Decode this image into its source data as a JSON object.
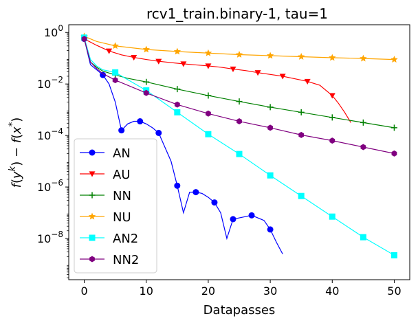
{
  "chart_data": {
    "type": "line",
    "title": "rcv1_train.binary-1, tau=1",
    "xlabel": "Datapasses",
    "ylabel": "f(y^k) − f(x*)",
    "ylabel_parts": {
      "f1": "f",
      "y": "y",
      "k": "k",
      "minus": "−",
      "f2": "f",
      "x": "x",
      "star": "*"
    },
    "xlim": [
      -2.5,
      52.5
    ],
    "ylim_log10": [
      -9.6,
      0.3
    ],
    "yscale": "log",
    "x_ticks": [
      0,
      10,
      20,
      30,
      40,
      50
    ],
    "x_tick_labels": [
      "0",
      "10",
      "20",
      "30",
      "40",
      "50"
    ],
    "y_ticks_log10": [
      0,
      -2,
      -4,
      -6,
      -8
    ],
    "y_tick_labels": [
      {
        "base": "10",
        "exp": "0"
      },
      {
        "base": "10",
        "exp": "−2"
      },
      {
        "base": "10",
        "exp": "−4"
      },
      {
        "base": "10",
        "exp": "−6"
      },
      {
        "base": "10",
        "exp": "−8"
      }
    ],
    "legend_position": "lower-left",
    "series": [
      {
        "name": "AN",
        "color": "#0000ff",
        "marker": "circle",
        "x": [
          0,
          1,
          2,
          3,
          4,
          5,
          6,
          7,
          8,
          9,
          10,
          11,
          12,
          13,
          14,
          15,
          16,
          17,
          18,
          19,
          20,
          21,
          22,
          23,
          24,
          25,
          26,
          27,
          28,
          29,
          30,
          31,
          32
        ],
        "log10y": [
          -0.25,
          -1.25,
          -1.45,
          -1.65,
          -2.0,
          -2.7,
          -3.8,
          -3.55,
          -3.45,
          -3.45,
          -3.55,
          -3.7,
          -3.9,
          -4.45,
          -5.0,
          -5.95,
          -7.0,
          -6.2,
          -6.2,
          -6.25,
          -6.4,
          -6.6,
          -7.0,
          -8.0,
          -7.25,
          -7.2,
          -7.15,
          -7.1,
          -7.2,
          -7.3,
          -7.65,
          -8.15,
          -8.6
        ],
        "marker_x": [
          0,
          3,
          6,
          9,
          12,
          15,
          18,
          21,
          24,
          27,
          30
        ]
      },
      {
        "name": "AU",
        "color": "#ff0000",
        "marker": "triangle-down",
        "x": [
          0,
          2,
          4,
          6,
          8,
          10,
          12,
          14,
          16,
          18,
          20,
          22,
          24,
          26,
          28,
          30,
          32,
          34,
          36,
          38,
          40,
          41,
          42,
          43
        ],
        "log10y": [
          -0.25,
          -0.5,
          -0.72,
          -0.87,
          -0.97,
          -1.05,
          -1.12,
          -1.17,
          -1.22,
          -1.26,
          -1.3,
          -1.35,
          -1.42,
          -1.48,
          -1.56,
          -1.63,
          -1.7,
          -1.8,
          -1.9,
          -2.05,
          -2.45,
          -2.75,
          -3.1,
          -3.5
        ],
        "marker_x": [
          0,
          4,
          8,
          12,
          16,
          20,
          24,
          28,
          32,
          36,
          40
        ]
      },
      {
        "name": "NN",
        "color": "#008000",
        "marker": "plus",
        "x": [
          0,
          1,
          2,
          3,
          5,
          7,
          10,
          15,
          20,
          25,
          30,
          35,
          40,
          45,
          50
        ],
        "log10y": [
          -0.25,
          -1.15,
          -1.35,
          -1.5,
          -1.65,
          -1.78,
          -1.92,
          -2.2,
          -2.45,
          -2.68,
          -2.9,
          -3.1,
          -3.3,
          -3.5,
          -3.7
        ],
        "marker_x": [
          0,
          5,
          10,
          15,
          20,
          25,
          30,
          35,
          40,
          45,
          50
        ]
      },
      {
        "name": "NU",
        "color": "#ffa500",
        "marker": "star",
        "x": [
          0,
          2,
          5,
          10,
          15,
          20,
          25,
          30,
          35,
          40,
          45,
          50
        ],
        "log10y": [
          -0.15,
          -0.35,
          -0.52,
          -0.66,
          -0.74,
          -0.8,
          -0.86,
          -0.9,
          -0.94,
          -0.98,
          -1.01,
          -1.05
        ],
        "marker_x": [
          0,
          5,
          10,
          15,
          20,
          25,
          30,
          35,
          40,
          45,
          50
        ]
      },
      {
        "name": "AN2",
        "color": "#00ffff",
        "marker": "square",
        "x": [
          0,
          1,
          2,
          3,
          5,
          10,
          15,
          20,
          25,
          30,
          35,
          40,
          45,
          50
        ],
        "log10y": [
          -0.2,
          -1.05,
          -1.3,
          -1.45,
          -1.55,
          -2.25,
          -3.1,
          -3.95,
          -4.72,
          -5.55,
          -6.35,
          -7.15,
          -7.95,
          -8.65
        ],
        "marker_x": [
          0,
          5,
          10,
          15,
          20,
          25,
          30,
          35,
          40,
          45,
          50
        ]
      },
      {
        "name": "NN2",
        "color": "#800080",
        "marker": "hexagon",
        "x": [
          0,
          1,
          2,
          3,
          5,
          10,
          15,
          20,
          25,
          30,
          35,
          40,
          45,
          50
        ],
        "log10y": [
          -0.25,
          -1.15,
          -1.4,
          -1.6,
          -1.85,
          -2.35,
          -2.8,
          -3.15,
          -3.45,
          -3.7,
          -3.98,
          -4.2,
          -4.45,
          -4.7
        ],
        "marker_x": [
          0,
          5,
          10,
          15,
          20,
          25,
          30,
          35,
          40,
          45,
          50
        ]
      }
    ]
  }
}
